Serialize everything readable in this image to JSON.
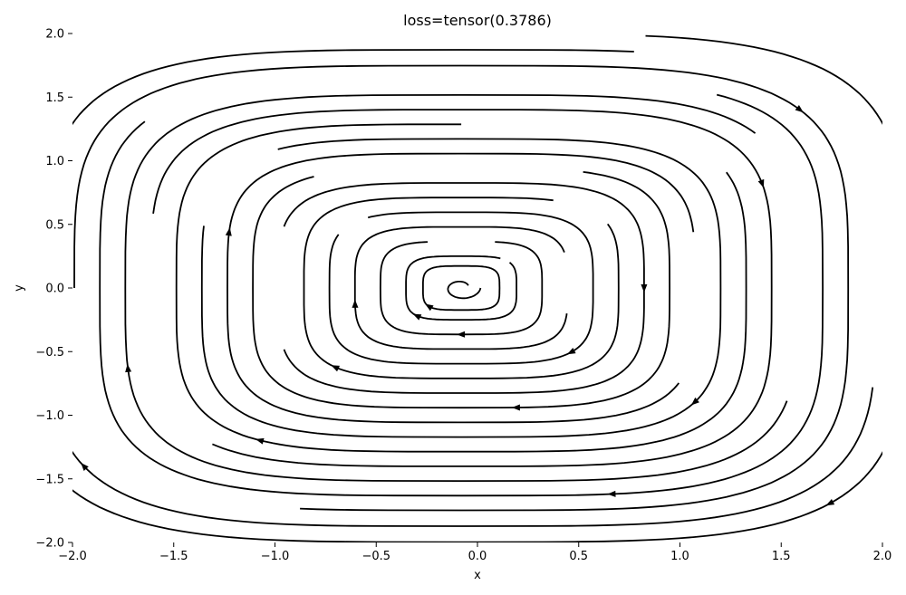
{
  "chart_data": {
    "type": "streamplot",
    "title": "loss=tensor(0.3786)",
    "xlabel": "x",
    "ylabel": "y",
    "xlim": [
      -2.0,
      2.0
    ],
    "ylim": [
      -2.0,
      2.0
    ],
    "x_ticks": [
      "−2.0",
      "−1.5",
      "−1.0",
      "−0.5",
      "0.0",
      "0.5",
      "1.0",
      "1.5",
      "2.0"
    ],
    "y_ticks": [
      "−2.0",
      "−1.5",
      "−1.0",
      "−0.5",
      "0.0",
      "0.5",
      "1.0",
      "1.5",
      "2.0"
    ],
    "x_tick_values": [
      -2.0,
      -1.5,
      -1.0,
      -0.5,
      0.0,
      0.5,
      1.0,
      1.5,
      2.0
    ],
    "y_tick_values": [
      -2.0,
      -1.5,
      -1.0,
      -0.5,
      0.0,
      0.5,
      1.0,
      1.5,
      2.0
    ],
    "grid": false,
    "line_color": "#000000",
    "field": {
      "center": [
        -0.08,
        0.0
      ],
      "rotation": "clockwise",
      "shape": "squircle"
    },
    "streamlines": [
      {
        "r": 0.18,
        "start": 30,
        "end": 420
      },
      {
        "r": 0.26,
        "start": 60,
        "end": 400
      },
      {
        "r": 0.38,
        "start": 100,
        "end": 440
      },
      {
        "r": 0.5,
        "start": 20,
        "end": 350
      },
      {
        "r": 0.62,
        "start": 150,
        "end": 480
      },
      {
        "r": 0.74,
        "start": 70,
        "end": 390
      },
      {
        "r": 0.86,
        "start": 200,
        "end": 520
      },
      {
        "r": 0.98,
        "start": 120,
        "end": 430
      },
      {
        "r": 1.1,
        "start": 10,
        "end": 330
      },
      {
        "r": 1.22,
        "start": 170,
        "end": 480
      },
      {
        "r": 1.34,
        "start": 90,
        "end": 390
      },
      {
        "r": 1.46,
        "start": 230,
        "end": 530
      },
      {
        "r": 1.58,
        "start": 40,
        "end": 340
      },
      {
        "r": 1.7,
        "start": 140,
        "end": 420
      },
      {
        "r": 1.82,
        "start": 260,
        "end": 540
      },
      {
        "r": 1.95,
        "start": 80,
        "end": 350
      },
      {
        "r": 2.08,
        "start": 190,
        "end": 440
      }
    ]
  }
}
